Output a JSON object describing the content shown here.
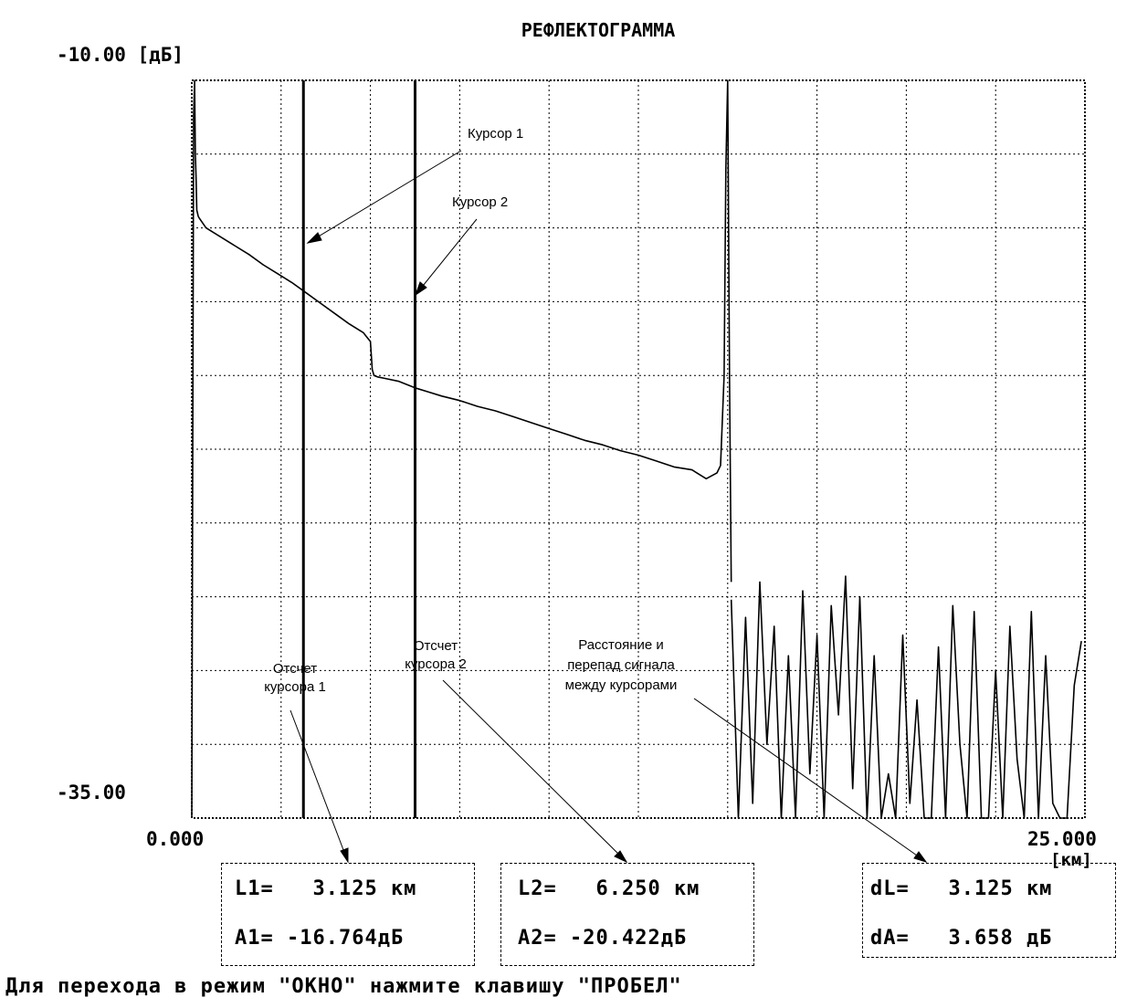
{
  "chart_data": {
    "type": "line",
    "title": "РЕФЛЕКТОГРАММА",
    "y_top_label": "-10.00 [дБ]",
    "y_bottom_label": "-35.00",
    "x_left_label": "0.000",
    "x_right_label": "25.000",
    "x_unit_label": "[км]",
    "xlim": [
      0,
      25
    ],
    "ylim": [
      -35,
      -10
    ],
    "grid": true,
    "x_grid_step": 2.5,
    "y_grid_step": 2.5,
    "series": [
      {
        "x": [
          0.0,
          0.05,
          0.08,
          0.1,
          0.12,
          0.14,
          0.16,
          0.18,
          0.2,
          0.4,
          0.8,
          1.2,
          1.6,
          2.0,
          2.4,
          2.8,
          3.2,
          3.6,
          4.0,
          4.4,
          4.8,
          4.9,
          5.0,
          5.05,
          5.1,
          5.2,
          5.4,
          5.8,
          6.25,
          6.6,
          7.0,
          7.5,
          8.0,
          8.5,
          9.0,
          9.5,
          10.0,
          10.5,
          11.0,
          11.5,
          12.0,
          12.5,
          13.0,
          13.5,
          14.0,
          14.4,
          14.7,
          14.8,
          14.9,
          14.95,
          15.0,
          15.05,
          15.1
        ],
        "y": [
          -35.0,
          -11.2,
          -10.0,
          -12.5,
          -13.3,
          -14.4,
          -14.5,
          -14.6,
          -14.65,
          -15.0,
          -15.3,
          -15.6,
          -15.9,
          -16.25,
          -16.55,
          -16.85,
          -17.2,
          -17.55,
          -17.9,
          -18.25,
          -18.55,
          -18.7,
          -18.85,
          -19.8,
          -20.0,
          -20.05,
          -20.1,
          -20.2,
          -20.42,
          -20.55,
          -20.7,
          -20.85,
          -21.05,
          -21.2,
          -21.4,
          -21.6,
          -21.8,
          -22.0,
          -22.2,
          -22.35,
          -22.55,
          -22.7,
          -22.9,
          -23.1,
          -23.2,
          -23.5,
          -23.3,
          -23.05,
          -20.0,
          -13.0,
          -10.0,
          -20.0,
          -27.0
        ],
        "color": "#000000"
      },
      {
        "x": [
          15.1,
          15.3,
          15.5,
          15.7,
          15.9,
          16.1,
          16.3,
          16.5,
          16.7,
          16.9,
          17.1,
          17.3,
          17.5,
          17.7,
          17.9,
          18.1,
          18.3,
          18.5,
          18.7,
          18.9,
          19.1,
          19.3,
          19.5,
          19.7,
          19.9,
          20.1,
          20.3,
          20.5,
          20.7,
          20.9,
          21.1,
          21.3,
          21.5,
          21.7,
          21.9,
          22.1,
          22.3,
          22.5,
          22.7,
          22.9,
          23.1,
          23.3,
          23.5,
          23.7,
          23.9,
          24.1,
          24.3,
          24.5,
          24.7,
          24.9
        ],
        "y": [
          -27.6,
          -35.0,
          -28.2,
          -34.5,
          -27.0,
          -32.5,
          -28.5,
          -35.0,
          -29.5,
          -35.0,
          -27.3,
          -33.5,
          -28.8,
          -35.0,
          -27.8,
          -31.5,
          -26.8,
          -34.0,
          -27.5,
          -35.0,
          -29.5,
          -35.0,
          -33.5,
          -35.0,
          -28.8,
          -34.5,
          -31.0,
          -35.0,
          -35.0,
          -29.2,
          -35.0,
          -27.8,
          -32.5,
          -35.0,
          -28.0,
          -35.0,
          -35.0,
          -30.0,
          -35.0,
          -28.5,
          -33.0,
          -35.0,
          -28.0,
          -35.0,
          -29.5,
          -34.5,
          -35.0,
          -35.0,
          -30.5,
          -29.0
        ],
        "color": "#000000"
      }
    ],
    "cursors": [
      {
        "name": "Курсор 1",
        "x": 3.125
      },
      {
        "name": "Курсор 2",
        "x": 6.25
      }
    ]
  },
  "annotations": {
    "cursor1": "Курсор 1",
    "cursor2": "Курсор 2",
    "reading1": [
      "Отсчет",
      "курсора 1"
    ],
    "reading2": [
      "Отсчет",
      "курсора 2"
    ],
    "delta": [
      "Расстояние и",
      "перепад сигнала",
      "между курсорами"
    ]
  },
  "readouts": {
    "l1": "L1=   3.125 км",
    "a1": "A1= -16.764дБ",
    "l2": "L2=   6.250 км",
    "a2": "A2= -20.422дБ",
    "dl": "dL=   3.125 км",
    "da": "dA=   3.658 дБ"
  },
  "footer": "Для перехода в режим \"ОКНО\" нажмите клавишу \"ПРОБЕЛ\""
}
